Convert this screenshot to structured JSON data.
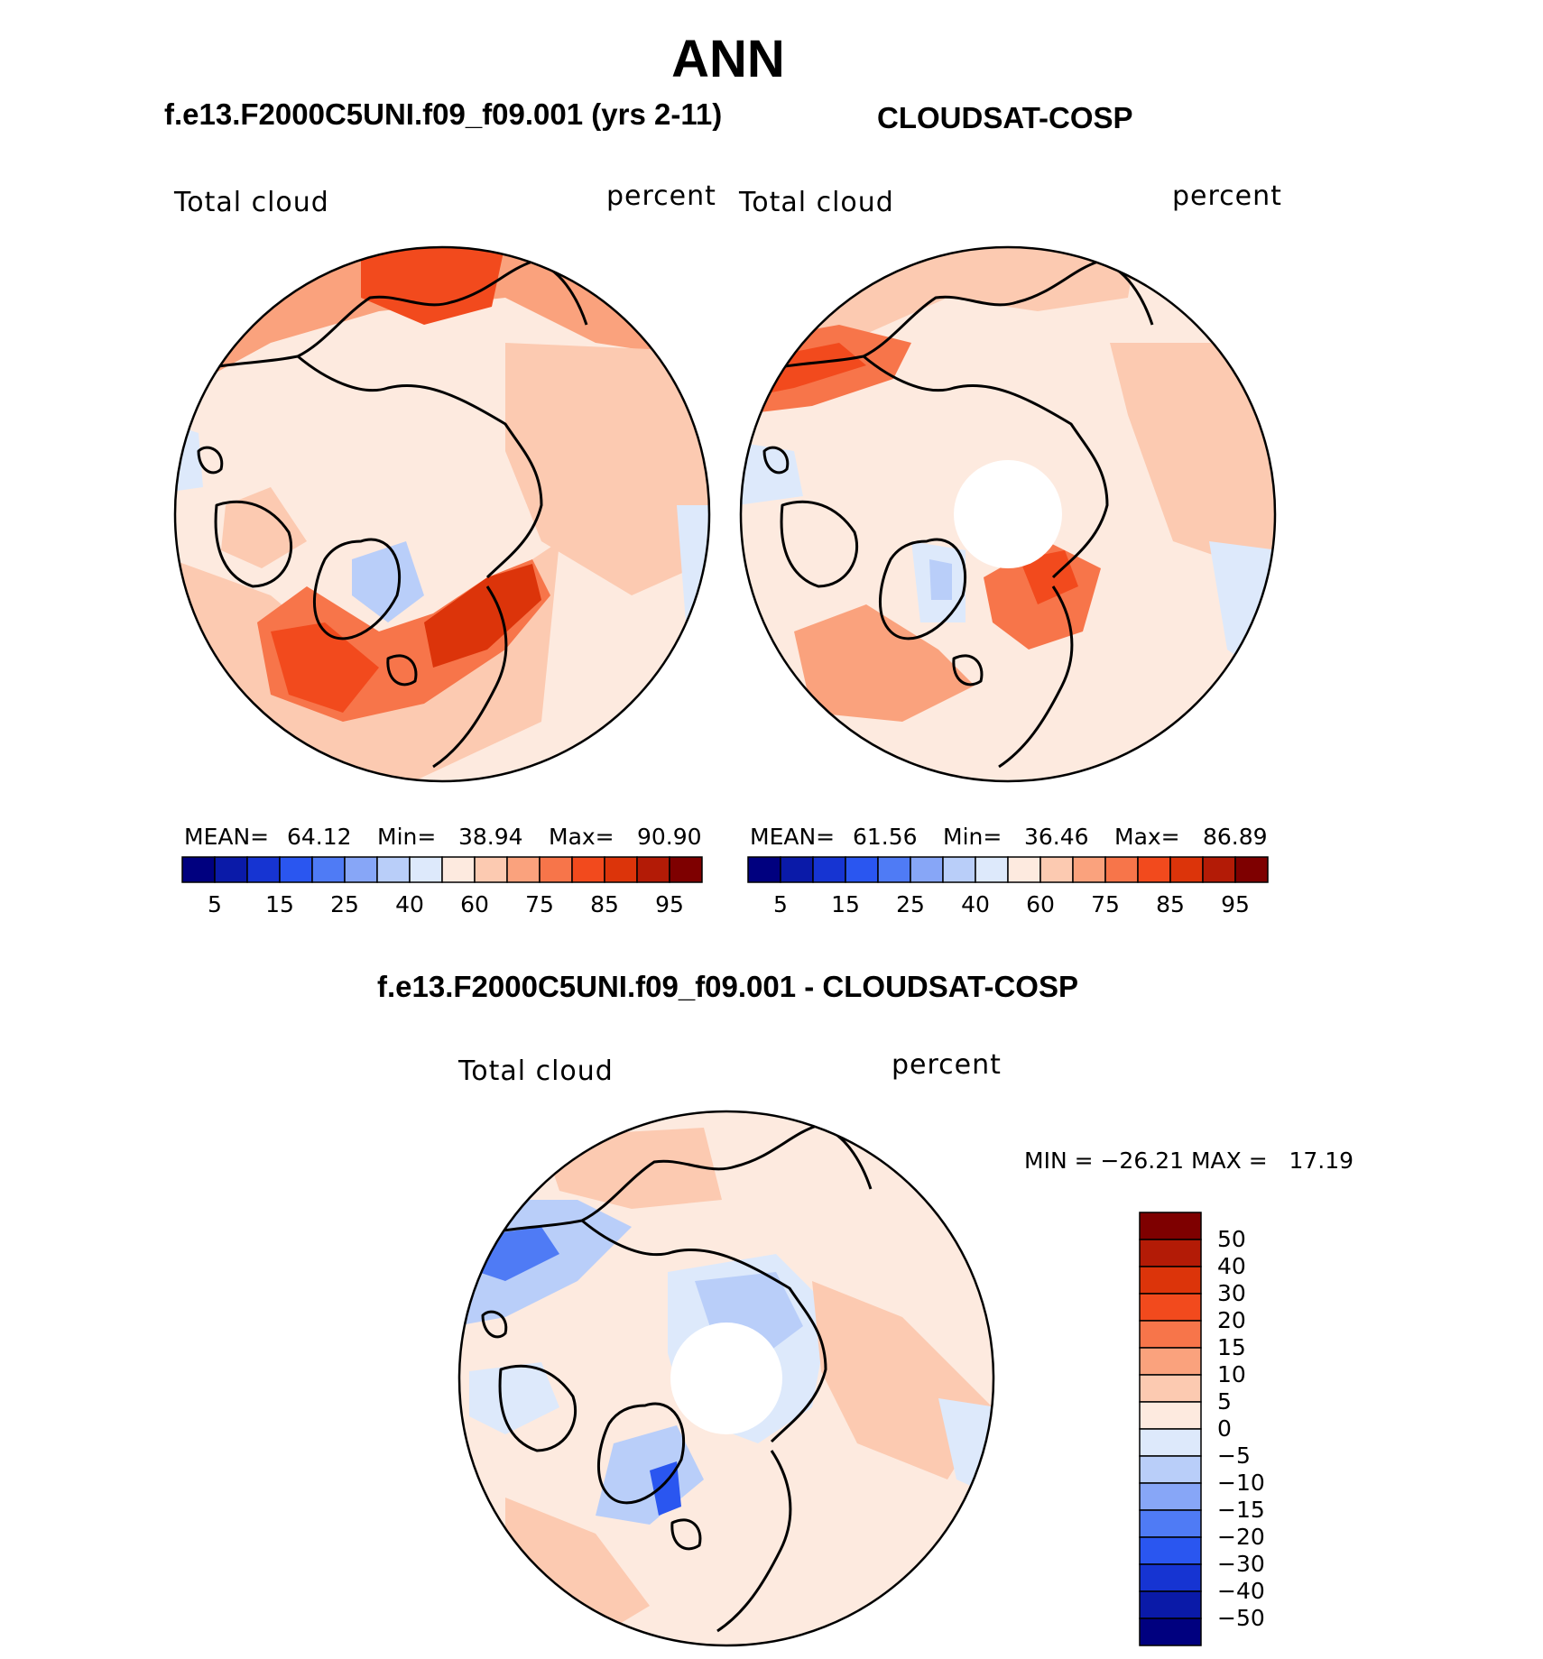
{
  "title": "ANN",
  "panels": [
    {
      "case_label": "f.e13.F2000C5UNI.f09_f09.001 (yrs 2-11)",
      "variable_label": "Total cloud",
      "units_label": "percent",
      "stats": {
        "mean_label": "MEAN=",
        "mean": "64.12",
        "min_label": "Min=",
        "min": "38.94",
        "max_label": "Max=",
        "max": "90.90"
      }
    },
    {
      "case_label": "CLOUDSAT-COSP",
      "variable_label": "Total cloud",
      "units_label": "percent",
      "stats": {
        "mean_label": "MEAN=",
        "mean": "61.56",
        "min_label": "Min=",
        "min": "36.46",
        "max_label": "Max=",
        "max": "86.89"
      }
    }
  ],
  "diff_panel": {
    "title": "f.e13.F2000C5UNI.f09_f09.001 - CLOUDSAT-COSP",
    "variable_label": "Total cloud",
    "units_label": "percent",
    "minmax_text": "MIN = −26.21 MAX =   17.19"
  },
  "colors": {
    "abs_scale": [
      "#00007f",
      "#0a1aa8",
      "#1634d2",
      "#2a56f0",
      "#4f7bf5",
      "#87a6f7",
      "#b9cef9",
      "#dde9fb",
      "#fdeadf",
      "#fccab1",
      "#faa27d",
      "#f7754a",
      "#f24a1d",
      "#dc340a",
      "#b31b06",
      "#7e0000"
    ],
    "diff_scale": [
      "#00007f",
      "#0a1aa8",
      "#1634d2",
      "#2a56f0",
      "#4f7bf5",
      "#87a6f7",
      "#b9cef9",
      "#dde9fb",
      "#fdeadf",
      "#fccab1",
      "#faa27d",
      "#f7754a",
      "#f24a1d",
      "#dc340a",
      "#b31b06",
      "#7e0000"
    ],
    "coast": "#000000"
  },
  "chart_data": [
    {
      "type": "heatmap",
      "projection": "north-polar-stereographic",
      "title": "f.e13.F2000C5UNI.f09_f09.001 (yrs 2-11)",
      "variable": "Total cloud",
      "units": "percent",
      "mean": 64.12,
      "min": 38.94,
      "max": 90.9,
      "colorbar_tick_labels": [
        "5",
        "15",
        "25",
        "40",
        "60",
        "75",
        "85",
        "95"
      ],
      "contour_levels": [
        5,
        10,
        15,
        20,
        25,
        30,
        40,
        50,
        60,
        70,
        75,
        80,
        85,
        90,
        95
      ]
    },
    {
      "type": "heatmap",
      "projection": "north-polar-stereographic",
      "title": "CLOUDSAT-COSP",
      "variable": "Total cloud",
      "units": "percent",
      "mean": 61.56,
      "min": 36.46,
      "max": 86.89,
      "colorbar_tick_labels": [
        "5",
        "15",
        "25",
        "40",
        "60",
        "75",
        "85",
        "95"
      ],
      "contour_levels": [
        5,
        10,
        15,
        20,
        25,
        30,
        40,
        50,
        60,
        70,
        75,
        80,
        85,
        90,
        95
      ]
    },
    {
      "type": "heatmap",
      "projection": "north-polar-stereographic",
      "title": "f.e13.F2000C5UNI.f09_f09.001 - CLOUDSAT-COSP",
      "variable": "Total cloud",
      "units": "percent",
      "min": -26.21,
      "max": 17.19,
      "colorbar_tick_labels": [
        "50",
        "40",
        "30",
        "20",
        "15",
        "10",
        "5",
        "0",
        "−5",
        "−10",
        "−15",
        "−20",
        "−30",
        "−40",
        "−50"
      ]
    }
  ]
}
